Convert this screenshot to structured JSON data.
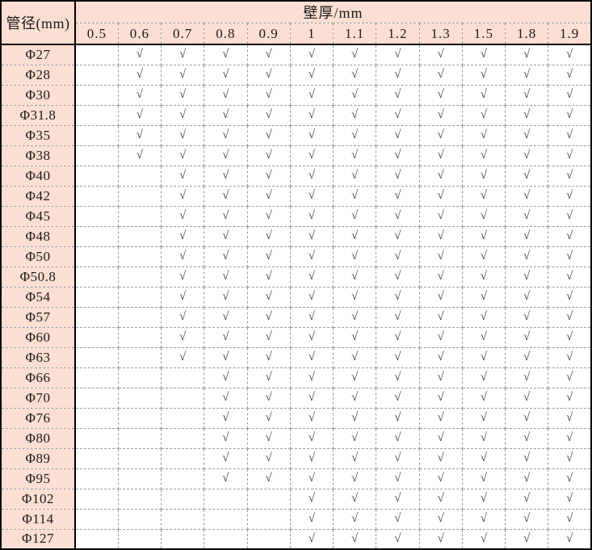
{
  "colors": {
    "header_bg": "#fcdfd2",
    "border_dark": "#000000",
    "border_dashed": "#9b9b9b",
    "check_color": "#3a3a3a"
  },
  "table": {
    "corner_label": "管径(mm)",
    "group_header": "壁厚/mm",
    "check_symbol": "√",
    "columns": [
      "0.5",
      "0.6",
      "0.7",
      "0.8",
      "0.9",
      "1",
      "1.1",
      "1.2",
      "1.3",
      "1.5",
      "1.8",
      "1.9"
    ],
    "rows": [
      {
        "label": "Φ27",
        "cells": [
          "",
          "√",
          "√",
          "√",
          "√",
          "√",
          "√",
          "√",
          "√",
          "√",
          "√",
          "√"
        ]
      },
      {
        "label": "Φ28",
        "cells": [
          "",
          "√",
          "√",
          "√",
          "√",
          "√",
          "√",
          "√",
          "√",
          "√",
          "√",
          "√"
        ]
      },
      {
        "label": "Φ30",
        "cells": [
          "",
          "√",
          "√",
          "√",
          "√",
          "√",
          "√",
          "√",
          "√",
          "√",
          "√",
          "√"
        ]
      },
      {
        "label": "Φ31.8",
        "cells": [
          "",
          "√",
          "√",
          "√",
          "√",
          "√",
          "√",
          "√",
          "√",
          "√",
          "√",
          "√"
        ]
      },
      {
        "label": "Φ35",
        "cells": [
          "",
          "√",
          "√",
          "√",
          "√",
          "√",
          "√",
          "√",
          "√",
          "√",
          "√",
          "√"
        ]
      },
      {
        "label": "Φ38",
        "cells": [
          "",
          "√",
          "√",
          "√",
          "√",
          "√",
          "√",
          "√",
          "√",
          "√",
          "√",
          "√"
        ]
      },
      {
        "label": "Φ40",
        "cells": [
          "",
          "",
          "√",
          "√",
          "√",
          "√",
          "√",
          "√",
          "√",
          "√",
          "√",
          "√"
        ]
      },
      {
        "label": "Φ42",
        "cells": [
          "",
          "",
          "√",
          "√",
          "√",
          "√",
          "√",
          "√",
          "√",
          "√",
          "√",
          "√"
        ]
      },
      {
        "label": "Φ45",
        "cells": [
          "",
          "",
          "√",
          "√",
          "√",
          "√",
          "√",
          "√",
          "√",
          "√",
          "√",
          "√"
        ]
      },
      {
        "label": "Φ48",
        "cells": [
          "",
          "",
          "√",
          "√",
          "√",
          "√",
          "√",
          "√",
          "√",
          "√",
          "√",
          "√"
        ]
      },
      {
        "label": "Φ50",
        "cells": [
          "",
          "",
          "√",
          "√",
          "√",
          "√",
          "√",
          "√",
          "√",
          "√",
          "√",
          "√"
        ]
      },
      {
        "label": "Φ50.8",
        "cells": [
          "",
          "",
          "√",
          "√",
          "√",
          "√",
          "√",
          "√",
          "√",
          "√",
          "√",
          "√"
        ]
      },
      {
        "label": "Φ54",
        "cells": [
          "",
          "",
          "√",
          "√",
          "√",
          "√",
          "√",
          "√",
          "√",
          "√",
          "√",
          "√"
        ]
      },
      {
        "label": "Φ57",
        "cells": [
          "",
          "",
          "√",
          "√",
          "√",
          "√",
          "√",
          "√",
          "√",
          "√",
          "√",
          "√"
        ]
      },
      {
        "label": "Φ60",
        "cells": [
          "",
          "",
          "√",
          "√",
          "√",
          "√",
          "√",
          "√",
          "√",
          "√",
          "√",
          "√"
        ]
      },
      {
        "label": "Φ63",
        "cells": [
          "",
          "",
          "√",
          "√",
          "√",
          "√",
          "√",
          "√",
          "√",
          "√",
          "√",
          "√"
        ]
      },
      {
        "label": "Φ66",
        "cells": [
          "",
          "",
          "",
          "√",
          "√",
          "√",
          "√",
          "√",
          "√",
          "√",
          "√",
          "√"
        ]
      },
      {
        "label": "Φ70",
        "cells": [
          "",
          "",
          "",
          "√",
          "√",
          "√",
          "√",
          "√",
          "√",
          "√",
          "√",
          "√"
        ]
      },
      {
        "label": "Φ76",
        "cells": [
          "",
          "",
          "",
          "√",
          "√",
          "√",
          "√",
          "√",
          "√",
          "√",
          "√",
          "√"
        ]
      },
      {
        "label": "Φ80",
        "cells": [
          "",
          "",
          "",
          "√",
          "√",
          "√",
          "√",
          "√",
          "√",
          "√",
          "√",
          "√"
        ]
      },
      {
        "label": "Φ89",
        "cells": [
          "",
          "",
          "",
          "√",
          "√",
          "√",
          "√",
          "√",
          "√",
          "√",
          "√",
          "√"
        ]
      },
      {
        "label": "Φ95",
        "cells": [
          "",
          "",
          "",
          "√",
          "√",
          "√",
          "√",
          "√",
          "√",
          "√",
          "√",
          "√"
        ]
      },
      {
        "label": "Φ102",
        "cells": [
          "",
          "",
          "",
          "",
          "",
          "√",
          "√",
          "√",
          "√",
          "√",
          "√",
          "√"
        ]
      },
      {
        "label": "Φ114",
        "cells": [
          "",
          "",
          "",
          "",
          "",
          "√",
          "√",
          "√",
          "√",
          "√",
          "√",
          "√"
        ]
      },
      {
        "label": "Φ127",
        "cells": [
          "",
          "",
          "",
          "",
          "",
          "√",
          "√",
          "√",
          "√",
          "√",
          "√",
          "√"
        ]
      }
    ]
  }
}
